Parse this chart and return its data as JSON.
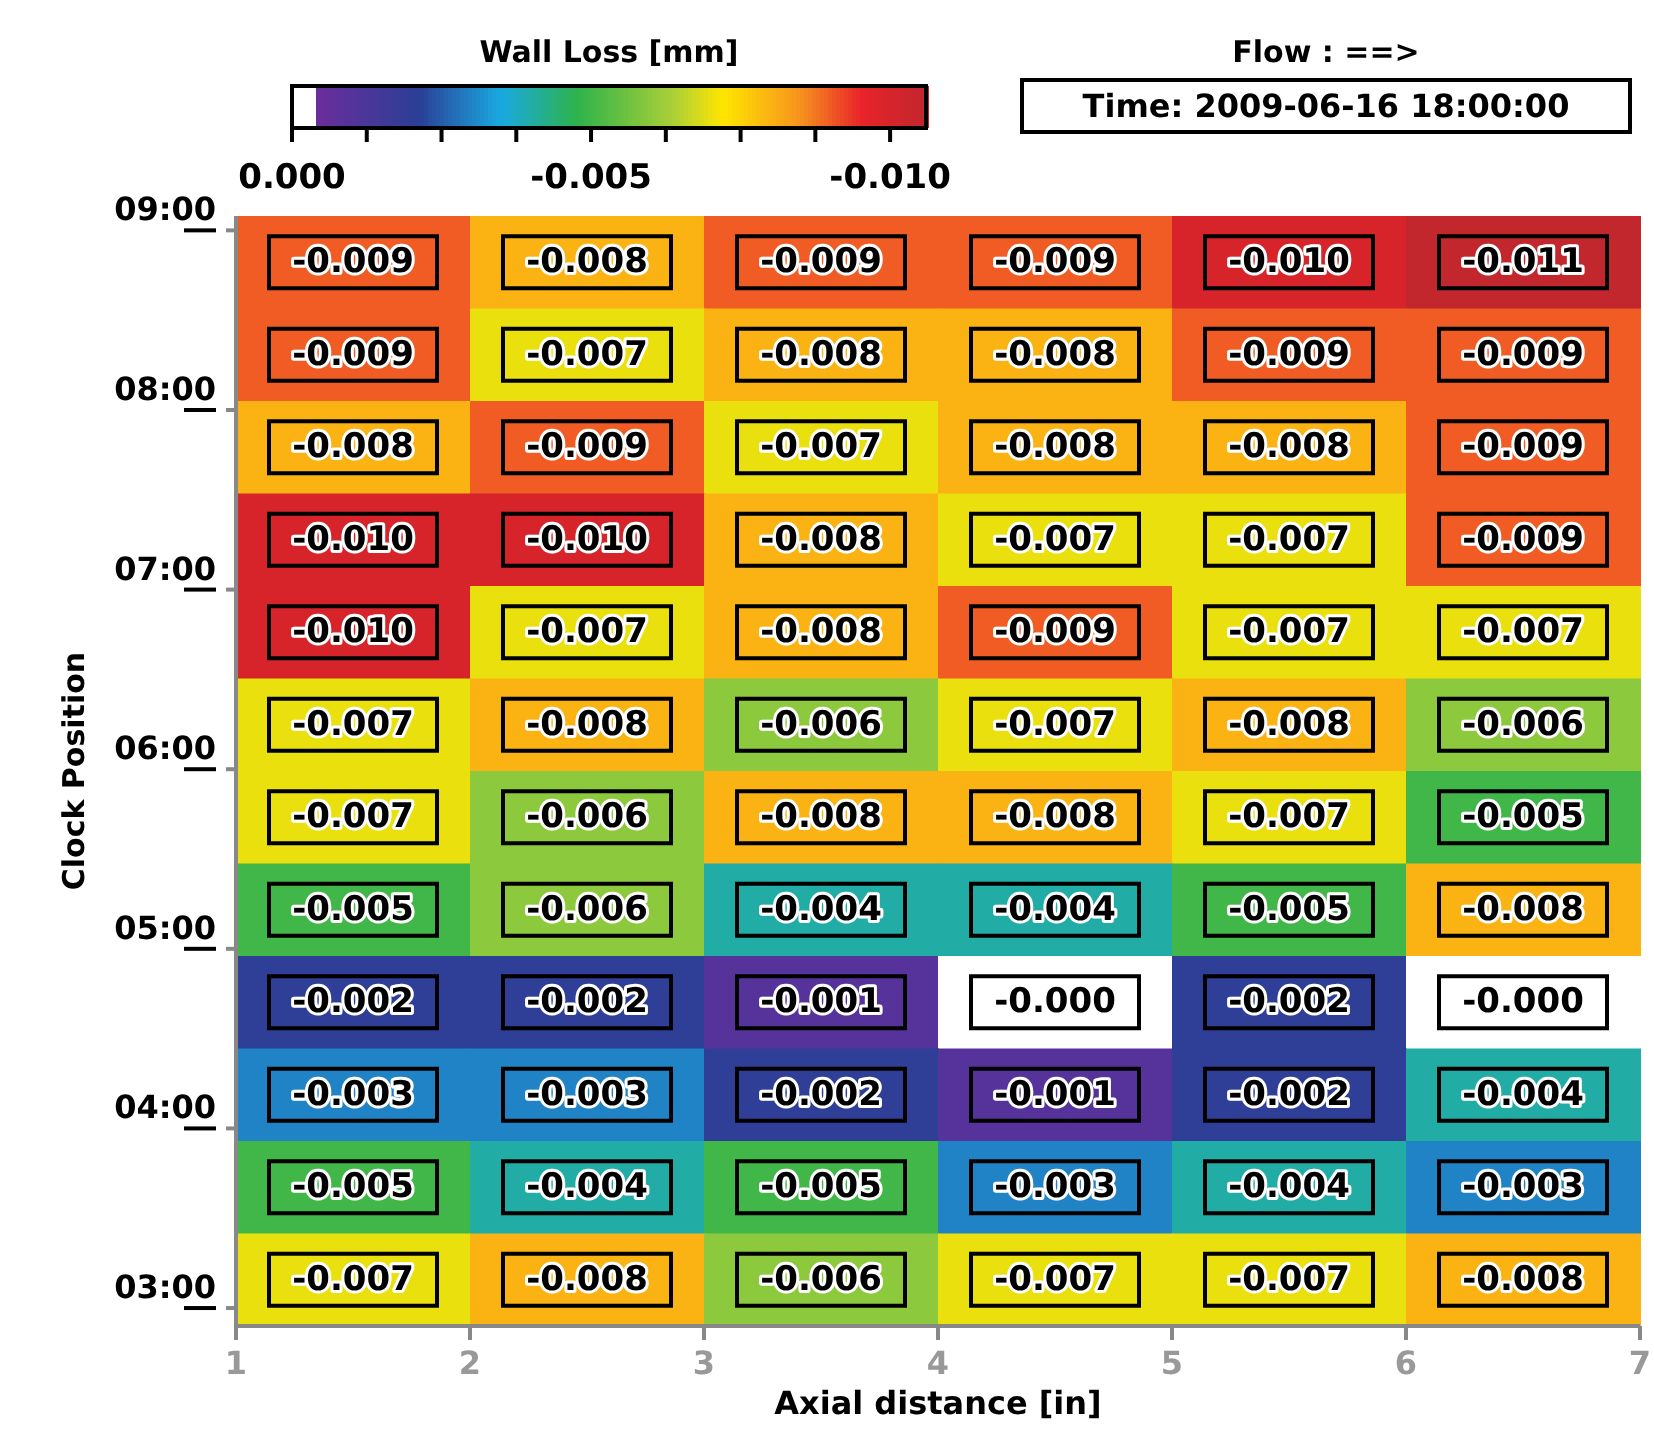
{
  "chart_data": {
    "type": "heatmap",
    "clabel": "Wall Loss [mm]",
    "xlabel": "Axial distance [in]",
    "ylabel": "Clock Position",
    "annotations": [
      "Flow : ==>",
      "Time: 2009-06-16 18:00:00"
    ],
    "x": [
      1.5,
      2.5,
      3.5,
      4.5,
      5.5,
      6.5
    ],
    "xlim": [
      1,
      7
    ],
    "xticks": [
      1,
      2,
      3,
      4,
      5,
      6,
      7
    ],
    "ylim": [
      2.9,
      9.08
    ],
    "yticks": [
      {
        "value": 3,
        "label": "03:00"
      },
      {
        "value": 4,
        "label": "04:00"
      },
      {
        "value": 5,
        "label": "05:00"
      },
      {
        "value": 6,
        "label": "06:00"
      },
      {
        "value": 7,
        "label": "07:00"
      },
      {
        "value": 8,
        "label": "08:00"
      },
      {
        "value": 9,
        "label": "09:00"
      }
    ],
    "clim": [
      0,
      -0.0106
    ],
    "cticks": [
      {
        "value": 0,
        "label": "0.000"
      },
      {
        "value": -0.00125,
        "label": null
      },
      {
        "value": -0.0025,
        "label": null
      },
      {
        "value": -0.00375,
        "label": null
      },
      {
        "value": -0.005,
        "label": "-0.005"
      },
      {
        "value": -0.00625,
        "label": null
      },
      {
        "value": -0.0075,
        "label": null
      },
      {
        "value": -0.00875,
        "label": null
      },
      {
        "value": -0.01,
        "label": "-0.010"
      }
    ],
    "cells": [
      [
        -0.009,
        -0.008,
        -0.009,
        -0.009,
        -0.01,
        -0.011
      ],
      [
        -0.009,
        -0.007,
        -0.008,
        -0.008,
        -0.009,
        -0.009
      ],
      [
        -0.008,
        -0.009,
        -0.007,
        -0.008,
        -0.008,
        -0.009
      ],
      [
        -0.01,
        -0.01,
        -0.008,
        -0.007,
        -0.007,
        -0.009
      ],
      [
        -0.01,
        -0.007,
        -0.008,
        -0.009,
        -0.007,
        -0.007
      ],
      [
        -0.007,
        -0.008,
        -0.006,
        -0.007,
        -0.008,
        -0.006
      ],
      [
        -0.007,
        -0.006,
        -0.008,
        -0.008,
        -0.007,
        -0.005
      ],
      [
        -0.005,
        -0.006,
        -0.004,
        -0.004,
        -0.005,
        -0.008
      ],
      [
        -0.002,
        -0.002,
        -0.001,
        0,
        -0.002,
        0
      ],
      [
        -0.003,
        -0.003,
        -0.002,
        -0.001,
        -0.002,
        -0.004
      ],
      [
        -0.005,
        -0.004,
        -0.005,
        -0.003,
        -0.004,
        -0.003
      ],
      [
        -0.007,
        -0.008,
        -0.006,
        -0.007,
        -0.007,
        -0.008
      ]
    ],
    "cell_labels": [
      [
        "-0.009",
        "-0.008",
        "-0.009",
        "-0.009",
        "-0.010",
        "-0.011"
      ],
      [
        "-0.009",
        "-0.007",
        "-0.008",
        "-0.008",
        "-0.009",
        "-0.009"
      ],
      [
        "-0.008",
        "-0.009",
        "-0.007",
        "-0.008",
        "-0.008",
        "-0.009"
      ],
      [
        "-0.010",
        "-0.010",
        "-0.008",
        "-0.007",
        "-0.007",
        "-0.009"
      ],
      [
        "-0.010",
        "-0.007",
        "-0.008",
        "-0.009",
        "-0.007",
        "-0.007"
      ],
      [
        "-0.007",
        "-0.008",
        "-0.006",
        "-0.007",
        "-0.008",
        "-0.006"
      ],
      [
        "-0.007",
        "-0.006",
        "-0.008",
        "-0.008",
        "-0.007",
        "-0.005"
      ],
      [
        "-0.005",
        "-0.006",
        "-0.004",
        "-0.004",
        "-0.005",
        "-0.008"
      ],
      [
        "-0.002",
        "-0.002",
        "-0.001",
        "-0.000",
        "-0.002",
        "-0.000"
      ],
      [
        "-0.003",
        "-0.003",
        "-0.002",
        "-0.001",
        "-0.002",
        "-0.004"
      ],
      [
        "-0.005",
        "-0.004",
        "-0.005",
        "-0.003",
        "-0.004",
        "-0.003"
      ],
      [
        "-0.007",
        "-0.008",
        "-0.006",
        "-0.007",
        "-0.007",
        "-0.008"
      ]
    ]
  }
}
